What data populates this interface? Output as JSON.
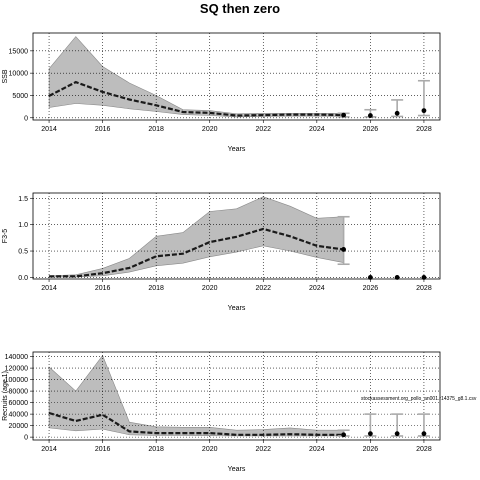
{
  "title": "SQ then zero",
  "xlabel": "Years",
  "x_ticks": [
    "2014",
    "2016",
    "2018",
    "2020",
    "2022",
    "2024",
    "2026",
    "2028"
  ],
  "annotation": "stockassessment.org_pollo_an001.r14375_g8.1.csv",
  "chart_data": [
    {
      "type": "line",
      "ylabel": "SSB",
      "xlim": [
        2013.4,
        2028.6
      ],
      "ylim": [
        -500,
        19000
      ],
      "y_ticks": [
        0,
        5000,
        10000,
        15000
      ],
      "y_tick_labels": [
        "0",
        "5000",
        "10000",
        "15000"
      ],
      "grid": true,
      "x": [
        2014,
        2015,
        2016,
        2017,
        2018,
        2019,
        2020,
        2021,
        2022,
        2023,
        2024,
        2025
      ],
      "median": [
        4900,
        8000,
        5800,
        4100,
        2800,
        1300,
        1100,
        500,
        600,
        700,
        700,
        600
      ],
      "low": [
        2300,
        3200,
        2800,
        2000,
        1400,
        700,
        500,
        200,
        300,
        350,
        350,
        300
      ],
      "high": [
        11000,
        18200,
        11500,
        7800,
        5000,
        1800,
        1600,
        900,
        1000,
        1000,
        1000,
        1000
      ],
      "projection": [
        {
          "x": 2025,
          "low": 200,
          "high": 1000,
          "point": 600
        },
        {
          "x": 2026,
          "low": 200,
          "high": 1800,
          "point": 500
        },
        {
          "x": 2027,
          "low": 300,
          "high": 4000,
          "point": 1000
        },
        {
          "x": 2028,
          "low": 500,
          "high": 8300,
          "point": 1600
        }
      ]
    },
    {
      "type": "line",
      "ylabel": "F3-5",
      "xlim": [
        2013.4,
        2028.6
      ],
      "ylim": [
        -0.03,
        1.6
      ],
      "y_ticks": [
        0,
        0.5,
        1.0,
        1.5
      ],
      "y_tick_labels": [
        "0.0",
        "0.5",
        "1.0",
        "1.5"
      ],
      "grid": true,
      "x": [
        2014,
        2015,
        2016,
        2017,
        2018,
        2019,
        2020,
        2021,
        2022,
        2023,
        2024,
        2025
      ],
      "median": [
        0.02,
        0.02,
        0.08,
        0.18,
        0.4,
        0.45,
        0.67,
        0.77,
        0.92,
        0.78,
        0.6,
        0.53
      ],
      "low": [
        0.01,
        0.01,
        0.03,
        0.1,
        0.22,
        0.27,
        0.39,
        0.48,
        0.6,
        0.5,
        0.38,
        0.28
      ],
      "high": [
        0.03,
        0.05,
        0.17,
        0.36,
        0.78,
        0.85,
        1.25,
        1.3,
        1.53,
        1.35,
        1.12,
        1.15
      ],
      "projection": [
        {
          "x": 2025,
          "low": 0.25,
          "high": 1.15,
          "point": 0.53
        },
        {
          "x": 2026,
          "low": 0,
          "high": 0,
          "point": 0
        },
        {
          "x": 2027,
          "low": 0,
          "high": 0,
          "point": 0
        },
        {
          "x": 2028,
          "low": 0,
          "high": 0,
          "point": 0
        }
      ]
    },
    {
      "type": "line",
      "ylabel": "Recruits (age 1)",
      "xlim": [
        2013.4,
        2028.6
      ],
      "ylim": [
        -5000,
        148000
      ],
      "y_ticks": [
        0,
        20000,
        40000,
        60000,
        80000,
        100000,
        120000,
        140000
      ],
      "y_tick_labels": [
        "0",
        "20000",
        "40000",
        "60000",
        "80000",
        "100000",
        "120000",
        "140000"
      ],
      "grid": true,
      "x": [
        2014,
        2015,
        2016,
        2017,
        2018,
        2019,
        2020,
        2021,
        2022,
        2023,
        2024,
        2025
      ],
      "median": [
        42000,
        28000,
        39000,
        10000,
        7000,
        7000,
        7000,
        4000,
        4000,
        5000,
        4000,
        4000
      ],
      "low": [
        16000,
        11000,
        14000,
        4000,
        3000,
        3000,
        2500,
        2000,
        2000,
        2000,
        2000,
        2000
      ],
      "high": [
        122000,
        80000,
        142000,
        26000,
        18000,
        17000,
        17000,
        12000,
        13000,
        16000,
        12000,
        12000
      ],
      "projection": [
        {
          "x": 2025,
          "low": 2000,
          "high": 12000,
          "point": 4000
        },
        {
          "x": 2026,
          "low": 2000,
          "high": 40000,
          "point": 6000
        },
        {
          "x": 2027,
          "low": 2000,
          "high": 40000,
          "point": 6000
        },
        {
          "x": 2028,
          "low": 2000,
          "high": 40000,
          "point": 6000
        }
      ]
    }
  ]
}
